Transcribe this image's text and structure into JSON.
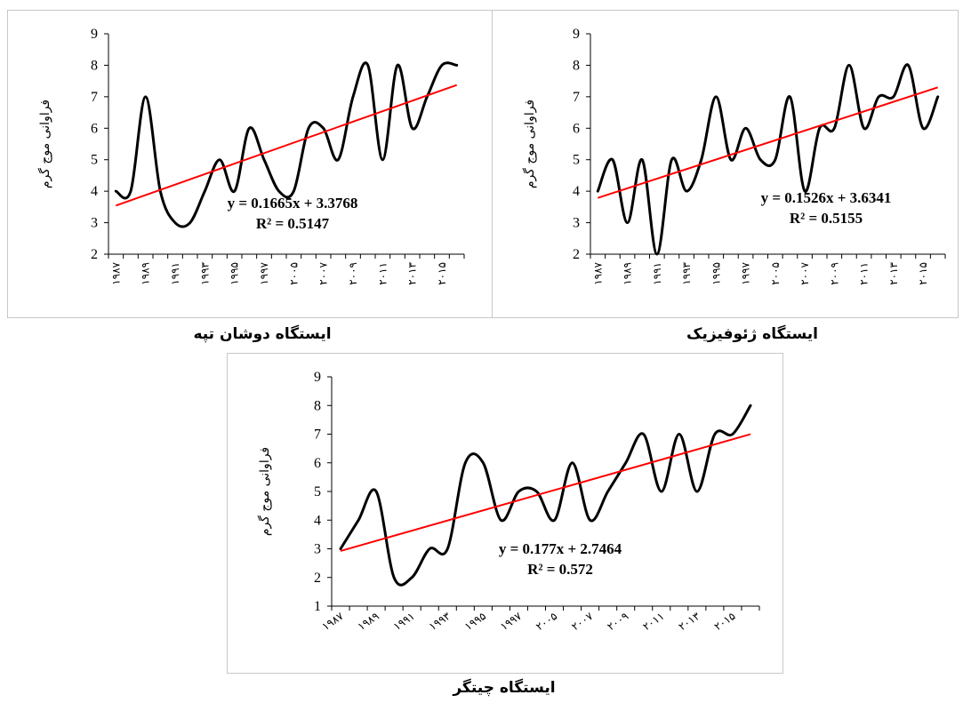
{
  "chart_data": [
    {
      "type": "line",
      "station": "ایستگاه دوشان تپه",
      "ylabel": "فراوانی موج گرم",
      "ylim": [
        2,
        9
      ],
      "yticks": [
        2,
        3,
        4,
        5,
        6,
        7,
        8,
        9
      ],
      "xtick_labels": [
        "۱۹۸۷",
        "۱۹۸۹",
        "۱۹۹۱",
        "۱۹۹۳",
        "۱۹۹۵",
        "۱۹۹۷",
        "۲۰۰۵",
        "۲۰۰۷",
        "۲۰۰۹",
        "۲۰۱۱",
        "۲۰۱۳",
        "۲۰۱۵"
      ],
      "series": [
        {
          "values": [
            4,
            4,
            7,
            4,
            3,
            3,
            4,
            5,
            4,
            6,
            5,
            4,
            4,
            6,
            6,
            5,
            7,
            8,
            5,
            8,
            6,
            7,
            8,
            8
          ],
          "color": "#000000"
        },
        {
          "trend": true,
          "values": [
            3.5433,
            7.3728
          ],
          "color": "#ff0000"
        }
      ],
      "trendline": {
        "equation": "y = 0.1665x + 3.3768",
        "r2": "R² = 0.5147"
      }
    },
    {
      "type": "line",
      "station": "ایستگاه ژئوفیزیک",
      "ylabel": "فراوانی موج گرم",
      "ylim": [
        2,
        9
      ],
      "yticks": [
        2,
        3,
        4,
        5,
        6,
        7,
        8,
        9
      ],
      "xtick_labels": [
        "۱۹۸۷",
        "۱۹۸۹",
        "۱۹۹۱",
        "۱۹۹۳",
        "۱۹۹۵",
        "۱۹۹۷",
        "۲۰۰۵",
        "۲۰۰۷",
        "۲۰۰۹",
        "۲۰۱۱",
        "۲۰۱۳",
        "۲۰۱۵"
      ],
      "series": [
        {
          "values": [
            4,
            5,
            3,
            5,
            2,
            5,
            4,
            5,
            7,
            5,
            6,
            5,
            5,
            7,
            4,
            6,
            6,
            8,
            6,
            7,
            7,
            8,
            6,
            7
          ],
          "color": "#000000"
        },
        {
          "trend": true,
          "values": [
            3.7867,
            7.2965
          ],
          "color": "#ff0000"
        }
      ],
      "trendline": {
        "equation": "y = 0.1526x + 3.6341",
        "r2": "R² = 0.5155"
      }
    },
    {
      "type": "line",
      "station": "ایستگاه چیتگر",
      "ylabel": "فراوانی موج گرم",
      "ylim": [
        1,
        9
      ],
      "yticks": [
        1,
        2,
        3,
        4,
        5,
        6,
        7,
        8,
        9
      ],
      "xtick_labels": [
        "۱۹۸۷",
        "۱۹۸۹",
        "۱۹۹۱",
        "۱۹۹۳",
        "۱۹۹۵",
        "۱۹۹۷",
        "۲۰۰۵",
        "۲۰۰۷",
        "۲۰۰۹",
        "۲۰۱۱",
        "۲۰۱۳",
        "۲۰۱۵"
      ],
      "series": [
        {
          "values": [
            3,
            4,
            5,
            2,
            2,
            3,
            3,
            6,
            6,
            4,
            5,
            5,
            4,
            6,
            4,
            5,
            6,
            7,
            5,
            7,
            5,
            7,
            7,
            8
          ],
          "color": "#000000"
        },
        {
          "trend": true,
          "values": [
            2.9234,
            6.9974
          ],
          "color": "#ff0000"
        }
      ],
      "trendline": {
        "equation": "y = 0.177x + 2.7464",
        "r2": "R² = 0.572"
      }
    }
  ]
}
